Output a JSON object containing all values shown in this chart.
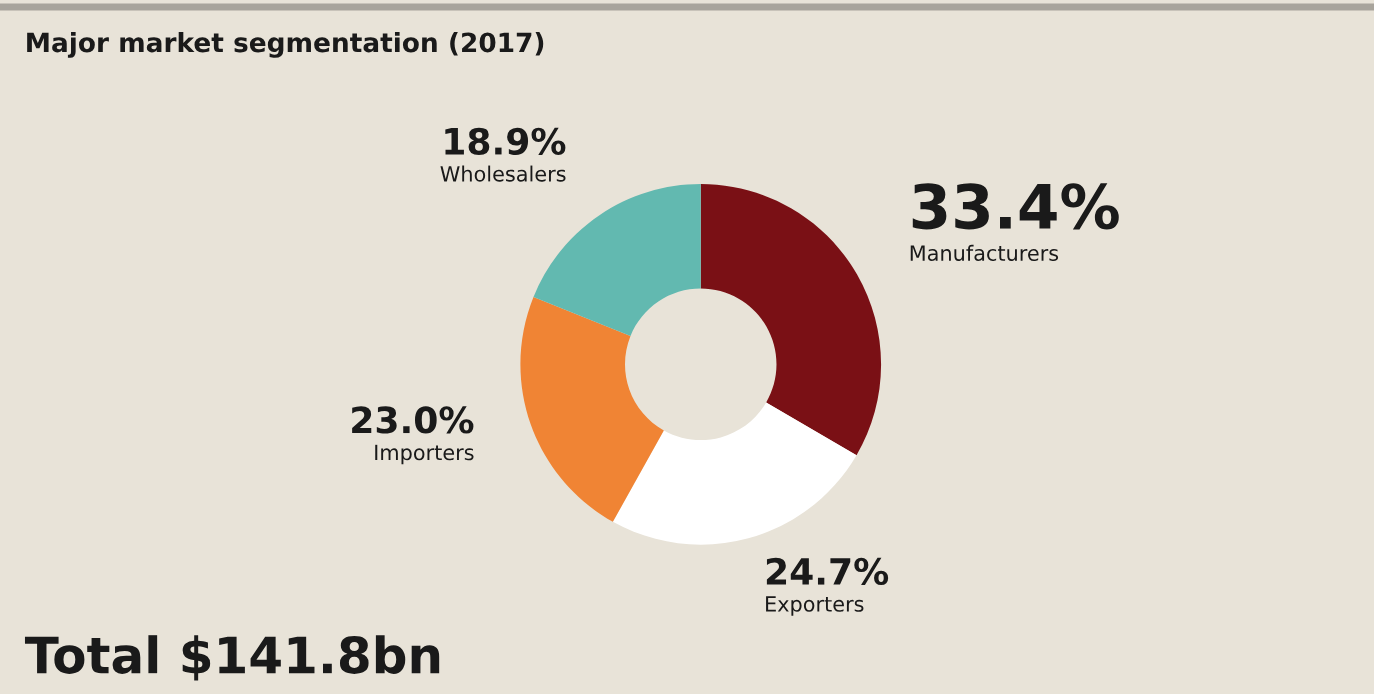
{
  "chart_data": {
    "type": "donut",
    "title": "Major market segmentation (2017)",
    "categories": [
      "Manufacturers",
      "Exporters",
      "Importers",
      "Wholesalers"
    ],
    "values": [
      33.4,
      24.7,
      23.0,
      18.9
    ],
    "colors": [
      "#7a1015",
      "#ffffff",
      "#f08434",
      "#62b9b0"
    ],
    "value_labels": [
      "33.4%",
      "24.7%",
      "23.0%",
      "18.9%"
    ],
    "annotations": [
      "Total $141.8bn"
    ],
    "legend": false
  }
}
